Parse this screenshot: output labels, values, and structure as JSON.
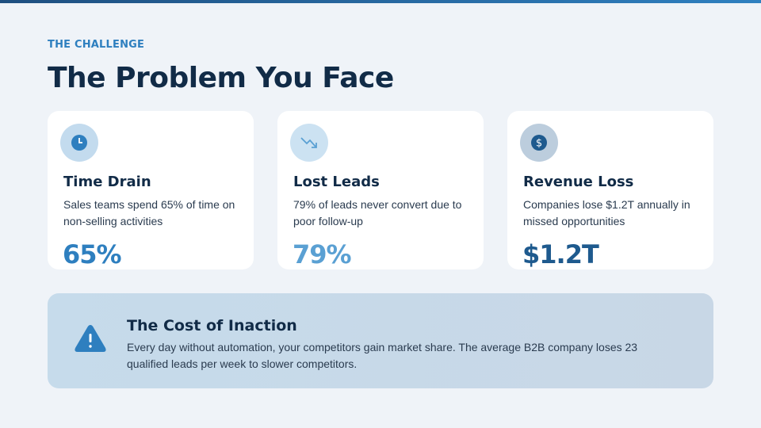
{
  "eyebrow": "THE CHALLENGE",
  "title": "The Problem You Face",
  "cards": [
    {
      "icon": "clock-icon",
      "title": "Time Drain",
      "desc": "Sales teams spend 65% of time on non-selling activities",
      "value": "65%",
      "color": "#2e7fbf"
    },
    {
      "icon": "trending-down-icon",
      "title": "Lost Leads",
      "desc": "79% of leads never convert due to poor follow-up",
      "value": "79%",
      "color": "#5aa0d3"
    },
    {
      "icon": "dollar-icon",
      "title": "Revenue Loss",
      "desc": "Companies lose $1.2T annually in missed opportunities",
      "value": "$1.2T",
      "color": "#1e5a8e"
    }
  ],
  "banner": {
    "icon": "warning-icon",
    "title": "The Cost of Inaction",
    "desc": "Every day without automation, your competitors gain market share. The average B2B company loses 23 qualified leads per week to slower competitors."
  }
}
